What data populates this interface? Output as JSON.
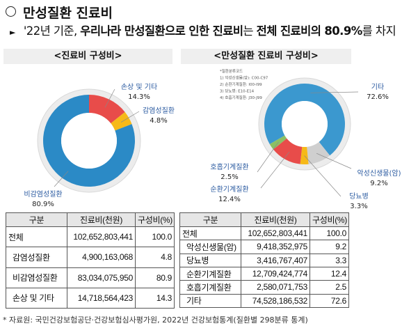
{
  "title": "만성질환 진료비",
  "subtitle": {
    "p1": "'22년 기준, ",
    "p2": "우리나라 만성질환으로 인한 진료비",
    "p3": "는 ",
    "p4": "전체 진료비의 80.9%",
    "p5": "를 차지"
  },
  "left_header": "<진료비 구성비>",
  "right_header": "<만성질환 진료비 구성비>",
  "chart_data": [
    {
      "type": "pie",
      "donut": true,
      "slices": [
        {
          "label": "손상 및 기타",
          "value": 14.3,
          "text": "14.3%",
          "color": "#e84c4a"
        },
        {
          "label": "감염성질환",
          "value": 4.8,
          "text": "4.8%",
          "color": "#f6b918"
        },
        {
          "label": "비감염성질환",
          "value": 80.9,
          "text": "80.9%",
          "color": "#2b8ac6"
        }
      ]
    },
    {
      "type": "pie",
      "donut": true,
      "slices": [
        {
          "label": "기타",
          "value": 72.6,
          "text": "72.6%",
          "color": "#3b98cf"
        },
        {
          "label": "악성신생물(암)",
          "value": 9.2,
          "text": "9.2%",
          "color": "#cfcfcf"
        },
        {
          "label": "당뇨병",
          "value": 3.3,
          "text": "3.3%",
          "color": "#f6b918"
        },
        {
          "label": "순환기계질환",
          "value": 12.4,
          "text": "12.4%",
          "color": "#e84c4a"
        },
        {
          "label": "호흡기계질환",
          "value": 2.5,
          "text": "2.5%",
          "color": "#8cc063"
        }
      ],
      "notes": [
        "*질환분류코드",
        "1) 악성신생물(암): C00-C97",
        "2) 순환기계질환: I00-I99",
        "3) 당뇨병: E10-E14",
        "4) 호흡기계질환: J30-J99"
      ]
    }
  ],
  "table_left": {
    "headers": [
      "구분",
      "진료비(천원)",
      "구성비(%)"
    ],
    "rows": [
      [
        "전체",
        "102,652,803,441",
        "100.0"
      ],
      [
        "감염성질환",
        "4,900,163,068",
        "4.8"
      ],
      [
        "비감염성질환",
        "83,034,075,950",
        "80.9"
      ],
      [
        "손상 및 기타",
        "14,718,564,423",
        "14.3"
      ]
    ]
  },
  "table_right": {
    "headers": [
      "구분",
      "진료비(천원)",
      "구성비(%)"
    ],
    "rows": [
      [
        "전체",
        "102,652,803,441",
        "100.0"
      ],
      [
        "악성신생물(암)",
        "9,418,352,975",
        "9.2"
      ],
      [
        "당뇨병",
        "3,416,767,407",
        "3.3"
      ],
      [
        "순환기계질환",
        "12,709,424,774",
        "12.4"
      ],
      [
        "호흡기계질환",
        "2,580,071,753",
        "2.5"
      ],
      [
        "기타",
        "74,528,186,532",
        "72.6"
      ]
    ]
  },
  "footnote": "* 자료원: 국민건강보험공단·건강보험심사평가원, 2022년 건강보험통계(질환별 298분류 통계)"
}
